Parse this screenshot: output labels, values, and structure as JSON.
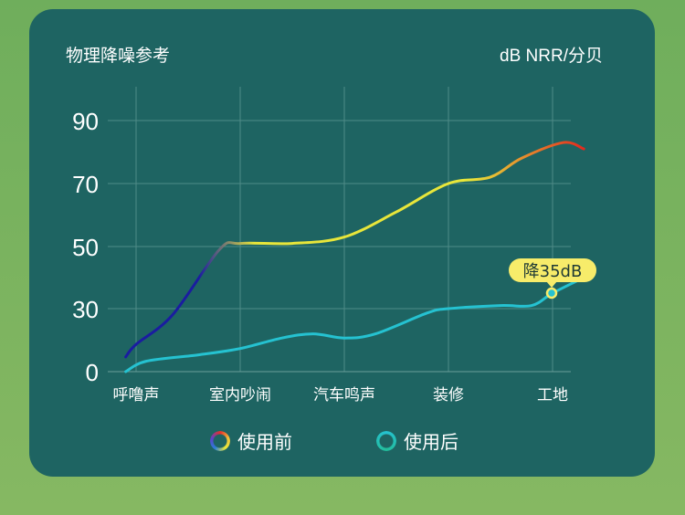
{
  "chart_data": {
    "type": "line",
    "title": "物理降噪参考",
    "unit_label": "dB NRR/分贝",
    "categories": [
      "呼噜声",
      "室内吵闹",
      "汽车鸣声",
      "装修",
      "工地"
    ],
    "y_ticks": [
      0,
      30,
      50,
      70,
      90
    ],
    "ylim": [
      0,
      95
    ],
    "grid": true,
    "legend_position": "bottom",
    "series": [
      {
        "name": "使用前",
        "color_start": "#1a1ca0",
        "color_mid": "#e8e63a",
        "color_end": "#e32a1e",
        "points": [
          [
            -0.1,
            7
          ],
          [
            0.0,
            13
          ],
          [
            0.35,
            27
          ],
          [
            0.8,
            49
          ],
          [
            1.0,
            51
          ],
          [
            1.5,
            51
          ],
          [
            2.0,
            53
          ],
          [
            2.5,
            61
          ],
          [
            3.0,
            70
          ],
          [
            3.4,
            72
          ],
          [
            3.7,
            78
          ],
          [
            4.1,
            83
          ],
          [
            4.3,
            81
          ]
        ]
      },
      {
        "name": "使用后",
        "color_start": "#25c2d1",
        "color_end": "#25c2d1",
        "points": [
          [
            -0.1,
            0
          ],
          [
            0.1,
            5
          ],
          [
            0.6,
            8
          ],
          [
            1.0,
            11
          ],
          [
            1.4,
            16
          ],
          [
            1.7,
            18
          ],
          [
            2.0,
            16
          ],
          [
            2.3,
            18
          ],
          [
            2.8,
            28
          ],
          [
            3.0,
            30
          ],
          [
            3.5,
            31
          ],
          [
            3.8,
            31
          ],
          [
            4.0,
            35
          ],
          [
            4.3,
            40
          ]
        ]
      }
    ],
    "annotation": {
      "label": "降35dB",
      "category": "工地",
      "value": 35
    }
  },
  "legend": {
    "before": "使用前",
    "after": "使用后"
  }
}
